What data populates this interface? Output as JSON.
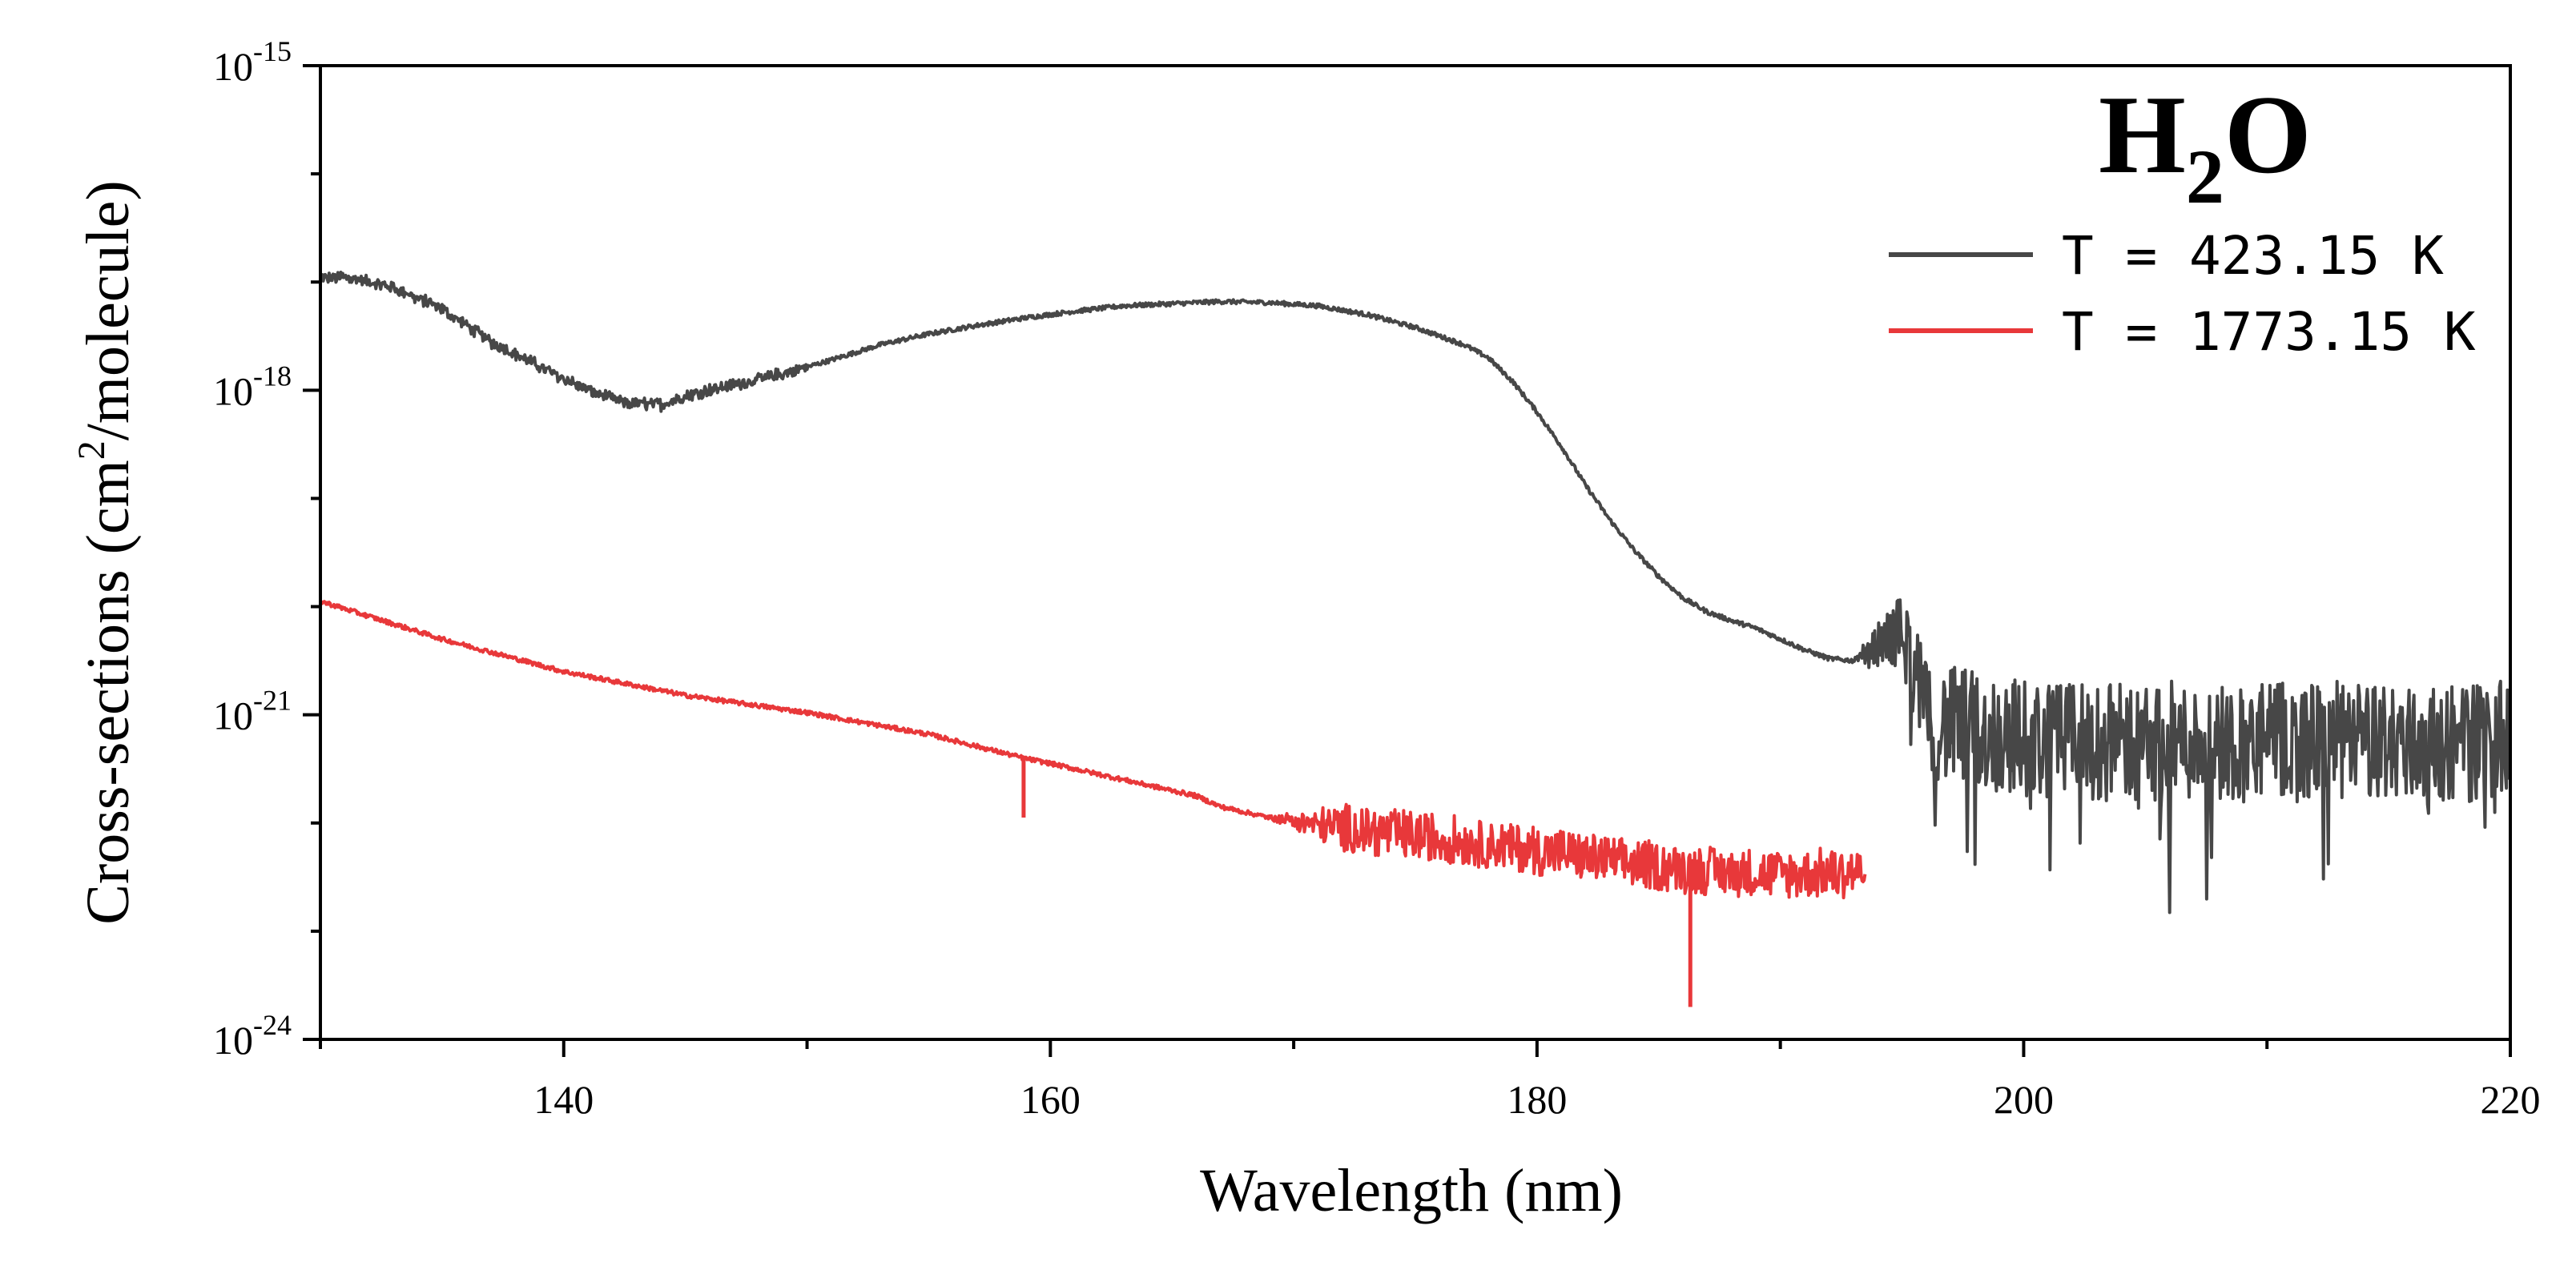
{
  "chart_data": {
    "type": "line",
    "title": "H2O",
    "title_parts": {
      "main": "H",
      "sub": "2",
      "tail": "O"
    },
    "xlabel": "Wavelength (nm)",
    "ylabel": {
      "text": "Cross-sections (cm",
      "sup": "2",
      "tail": "/molecule)"
    },
    "xlim": [
      130,
      220
    ],
    "ylim_log10": [
      -24,
      -15
    ],
    "y_scale": "log",
    "x_ticks": [
      140,
      160,
      180,
      200,
      220
    ],
    "x_minor_ticks": [
      130,
      150,
      170,
      190,
      210
    ],
    "x_tick_labels": [
      "140",
      "160",
      "180",
      "200",
      "220"
    ],
    "y_ticks": [
      {
        "base": "10",
        "exp": "-15"
      },
      {
        "base": "10",
        "exp": "-18"
      },
      {
        "base": "10",
        "exp": "-21"
      },
      {
        "base": "10",
        "exp": "-24"
      }
    ],
    "y_tick_exponents": [
      -15,
      -18,
      -21,
      -24
    ],
    "legend_position": "top-right",
    "series": [
      {
        "name": "T = 423.15 K",
        "color": "#474747",
        "x": [
          130,
          131,
          133,
          135,
          137,
          139,
          141,
          142.5,
          144,
          145.5,
          147,
          149,
          151,
          153,
          155,
          157,
          159,
          161,
          163,
          165,
          167,
          169,
          171,
          173,
          175,
          177,
          178,
          179,
          180,
          181,
          182,
          183,
          184,
          185,
          186,
          187,
          188,
          189,
          190,
          191,
          192,
          193,
          194,
          195,
          195.5,
          196,
          197,
          198,
          199,
          200,
          202,
          204,
          206,
          208,
          210,
          212,
          214,
          216,
          218,
          220
        ],
        "log10": [
          -16.97,
          -16.95,
          -17.05,
          -17.25,
          -17.55,
          -17.78,
          -18.0,
          -18.12,
          -18.13,
          -18.02,
          -17.95,
          -17.85,
          -17.72,
          -17.58,
          -17.48,
          -17.4,
          -17.33,
          -17.27,
          -17.22,
          -17.2,
          -17.18,
          -17.19,
          -17.22,
          -17.3,
          -17.42,
          -17.58,
          -17.7,
          -17.92,
          -18.2,
          -18.52,
          -18.88,
          -19.2,
          -19.48,
          -19.72,
          -19.92,
          -20.05,
          -20.13,
          -20.2,
          -20.3,
          -20.4,
          -20.48,
          -20.5,
          -20.35,
          -20.22,
          -20.55,
          -21.05,
          -21.1,
          -21.15,
          -21.2,
          -21.22,
          -21.25,
          -21.25,
          -21.25,
          -21.25,
          -21.25,
          -21.25,
          -21.25,
          -21.25,
          -21.25,
          -21.25
        ],
        "noise_start_x": 193,
        "noise_amplitude": 0.55
      },
      {
        "name": "T = 1773.15 K",
        "color": "#E8383A",
        "x": [
          130,
          135,
          140,
          145,
          150,
          155,
          158.9,
          160,
          163,
          166,
          167,
          169,
          172,
          175,
          178,
          181,
          184,
          187,
          190,
          193.5
        ],
        "log10": [
          -19.95,
          -20.3,
          -20.6,
          -20.82,
          -20.98,
          -21.18,
          -21.4,
          -21.45,
          -21.6,
          -21.75,
          -21.85,
          -21.95,
          -22.05,
          -22.12,
          -22.2,
          -22.28,
          -22.38,
          -22.44,
          -22.48,
          -22.45
        ],
        "noise_start_x": 169,
        "noise_amplitude": 0.22,
        "spikes": [
          {
            "x": 158.9,
            "log10": -21.95
          },
          {
            "x": 186.3,
            "log10": -23.7
          }
        ]
      }
    ]
  }
}
